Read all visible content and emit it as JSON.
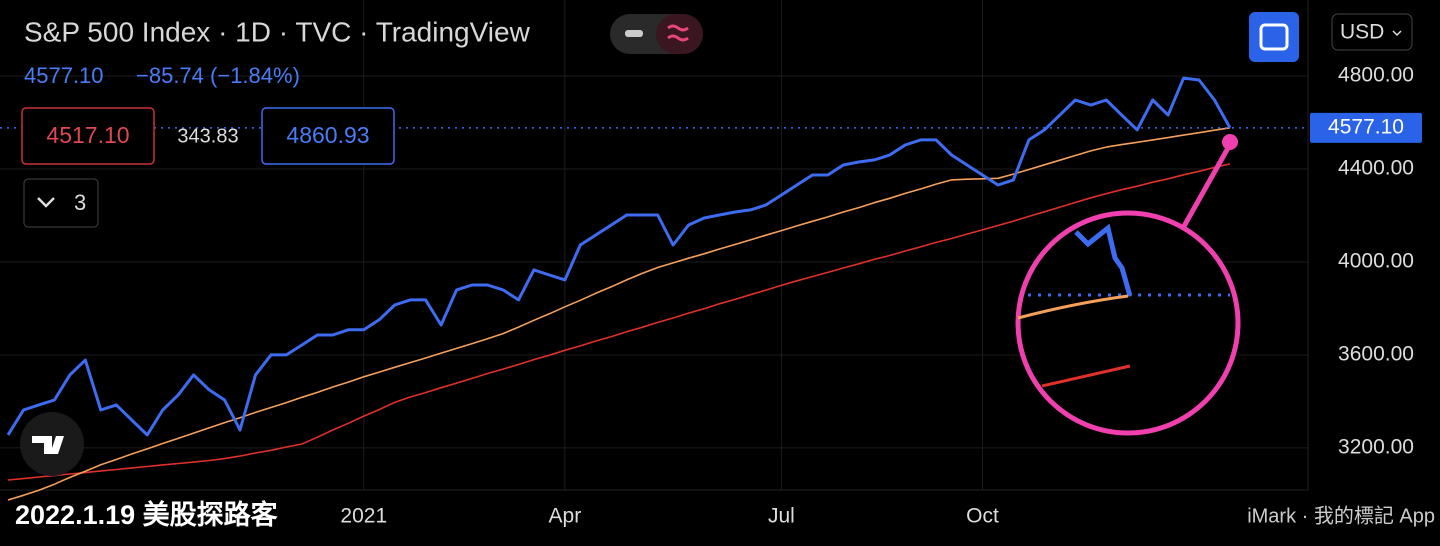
{
  "ui": {
    "title": "S&P 500 Index · 1D · TVC · TradingView",
    "change": "−85.74 (−1.84%)",
    "sell": "4517.10",
    "spread": "343.83",
    "buy": "4860.93",
    "indicators": "3",
    "currency": "USD",
    "watermark": "2022.1.19 美股探路客",
    "app": "iMark · 我的標記 App"
  },
  "chart_data": {
    "type": "line",
    "categories": [
      null,
      null,
      null,
      null,
      null,
      null,
      null,
      null,
      null,
      null,
      null,
      null,
      null,
      null,
      null,
      null,
      null,
      null,
      null,
      null,
      null,
      null,
      null,
      "2021",
      null,
      null,
      null,
      null,
      null,
      null,
      null,
      null,
      null,
      null,
      null,
      null,
      "Apr",
      null,
      null,
      null,
      null,
      null,
      null,
      null,
      null,
      null,
      null,
      null,
      null,
      null,
      "Jul",
      null,
      null,
      null,
      null,
      null,
      null,
      null,
      null,
      null,
      null,
      null,
      null,
      "Oct",
      null,
      null,
      null,
      null,
      null,
      null,
      null,
      null,
      null,
      null,
      null,
      null,
      null,
      null,
      null,
      null
    ],
    "series": [
      {
        "color": "#3d6cf0",
        "values": [
          3256,
          3363,
          3385,
          3406,
          3514,
          3578,
          3363,
          3385,
          3320,
          3256,
          3363,
          3428,
          3514,
          3450,
          3406,
          3277,
          3514,
          3600,
          3600,
          3643,
          3686,
          3686,
          3708,
          3708,
          3751,
          3815,
          3837,
          3837,
          3729,
          3880,
          3901,
          3901,
          3880,
          3837,
          3966,
          3944,
          3923,
          4073,
          4116,
          4159,
          4202,
          4202,
          4202,
          4073,
          4159,
          4189,
          4202,
          4215,
          4224,
          4245,
          4288,
          4331,
          4374,
          4374,
          4417,
          4430,
          4439,
          4460,
          4503,
          4525,
          4525,
          4460,
          4417,
          4374,
          4331,
          4353,
          4525,
          4568,
          4632,
          4697,
          4675,
          4697,
          4632,
          4568,
          4697,
          4632,
          4791,
          4783,
          4697,
          4577.1
        ]
      },
      {
        "color": "#f5a05a",
        "values": [
          2976,
          2996,
          3018,
          3044,
          3073,
          3100,
          3128,
          3150,
          3174,
          3196,
          3219,
          3241,
          3264,
          3286,
          3309,
          3330,
          3353,
          3374,
          3395,
          3418,
          3439,
          3462,
          3483,
          3506,
          3526,
          3547,
          3567,
          3587,
          3608,
          3628,
          3649,
          3670,
          3692,
          3720,
          3749,
          3777,
          3807,
          3835,
          3865,
          3893,
          3923,
          3951,
          3976,
          3996,
          4016,
          4035,
          4056,
          4075,
          4095,
          4115,
          4135,
          4155,
          4175,
          4194,
          4215,
          4234,
          4255,
          4274,
          4295,
          4314,
          4335,
          4353,
          4356,
          4358,
          4360,
          4378,
          4398,
          4418,
          4438,
          4458,
          4478,
          4494,
          4505,
          4515,
          4525,
          4535,
          4546,
          4556,
          4567,
          4577
        ]
      },
      {
        "color": "#e0302a",
        "values": [
          3062,
          3068,
          3075,
          3081,
          3088,
          3094,
          3101,
          3107,
          3114,
          3120,
          3127,
          3133,
          3139,
          3146,
          3154,
          3165,
          3178,
          3190,
          3204,
          3217,
          3246,
          3277,
          3306,
          3337,
          3365,
          3396,
          3419,
          3438,
          3459,
          3479,
          3499,
          3520,
          3539,
          3559,
          3580,
          3599,
          3620,
          3639,
          3660,
          3679,
          3700,
          3719,
          3740,
          3759,
          3780,
          3799,
          3820,
          3839,
          3859,
          3879,
          3899,
          3919,
          3937,
          3955,
          3974,
          3992,
          4011,
          4028,
          4047,
          4065,
          4084,
          4101,
          4120,
          4138,
          4157,
          4176,
          4196,
          4216,
          4236,
          4256,
          4276,
          4294,
          4311,
          4326,
          4343,
          4358,
          4375,
          4390,
          4407,
          4422
        ]
      }
    ],
    "last_price": {
      "value": 4577.1,
      "label": "4577.10"
    },
    "ylim": [
      3019,
      5127
    ],
    "yticks": [
      {
        "value": 3200,
        "label": "3200.00"
      },
      {
        "value": 3600,
        "label": "3600.00"
      },
      {
        "value": 4000,
        "label": "4000.00"
      },
      {
        "value": 4400,
        "label": "4400.00"
      },
      {
        "value": 4800,
        "label": "4800.00"
      }
    ],
    "grid": true
  }
}
